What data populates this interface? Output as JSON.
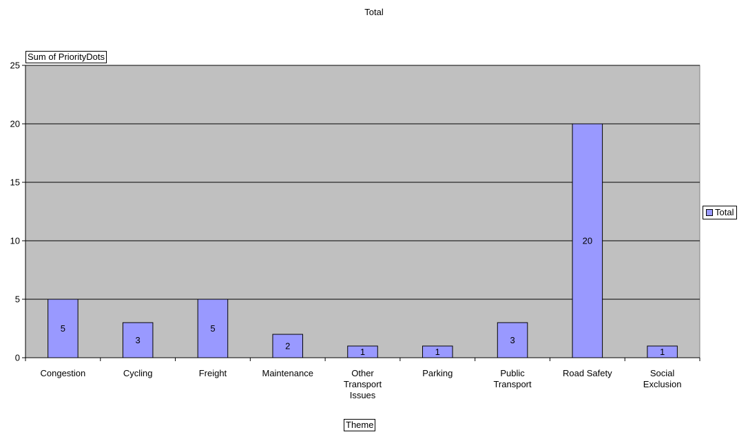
{
  "chart_data": {
    "type": "bar",
    "title": "Total",
    "ylabel": "Sum of PriorityDots",
    "xlabel": "Theme",
    "categories": [
      "Congestion",
      "Cycling",
      "Freight",
      "Maintenance",
      "Other Transport Issues",
      "Parking",
      "Public Transport",
      "Road Safety",
      "Social Exclusion"
    ],
    "series": [
      {
        "name": "Total",
        "values": [
          5,
          3,
          5,
          2,
          1,
          1,
          3,
          20,
          1
        ]
      }
    ],
    "ylim": [
      0,
      25
    ],
    "yticks": [
      0,
      5,
      10,
      15,
      20,
      25
    ],
    "grid": true,
    "legend_position": "right",
    "data_labels": true
  },
  "colors": {
    "plot_background": "#C0C0C0",
    "bar_fill": "#9999FF",
    "bar_stroke": "#000000",
    "gridline": "#000000"
  }
}
